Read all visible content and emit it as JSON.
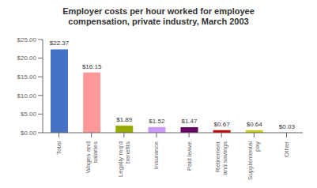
{
  "chart_data": {
    "type": "bar",
    "title": "Employer costs per hour worked for employee\ncompensation, private industry, March 2003",
    "categories": [
      "Total",
      "Wages and\nsalaries",
      "Legally req'd\nbenefits",
      "Insurance",
      "Paid leave",
      "Retirement\nand savings",
      "Supplemental\npay",
      "Other"
    ],
    "values": [
      22.37,
      16.15,
      1.89,
      1.52,
      1.47,
      0.67,
      0.64,
      0.03
    ],
    "value_labels": [
      "$22.37",
      "$16.15",
      "$1.89",
      "$1.52",
      "$1.47",
      "$0.67",
      "$0.64",
      "$0.03"
    ],
    "data_labels": true,
    "colors": [
      "#4472C4",
      "#FF9999",
      "#99AA00",
      "#CC99FF",
      "#660066",
      "#CC0000",
      "#CCCC00",
      "#999999"
    ],
    "ylim": [
      0,
      25
    ],
    "yticks": [
      {
        "value": 0,
        "label": "$0.00"
      },
      {
        "value": 5,
        "label": "$5.00"
      },
      {
        "value": 10,
        "label": "$10.00"
      },
      {
        "value": 15,
        "label": "$15.00"
      },
      {
        "value": 20,
        "label": "$20.00"
      },
      {
        "value": 25,
        "label": "$25.00"
      }
    ],
    "grid": false
  }
}
